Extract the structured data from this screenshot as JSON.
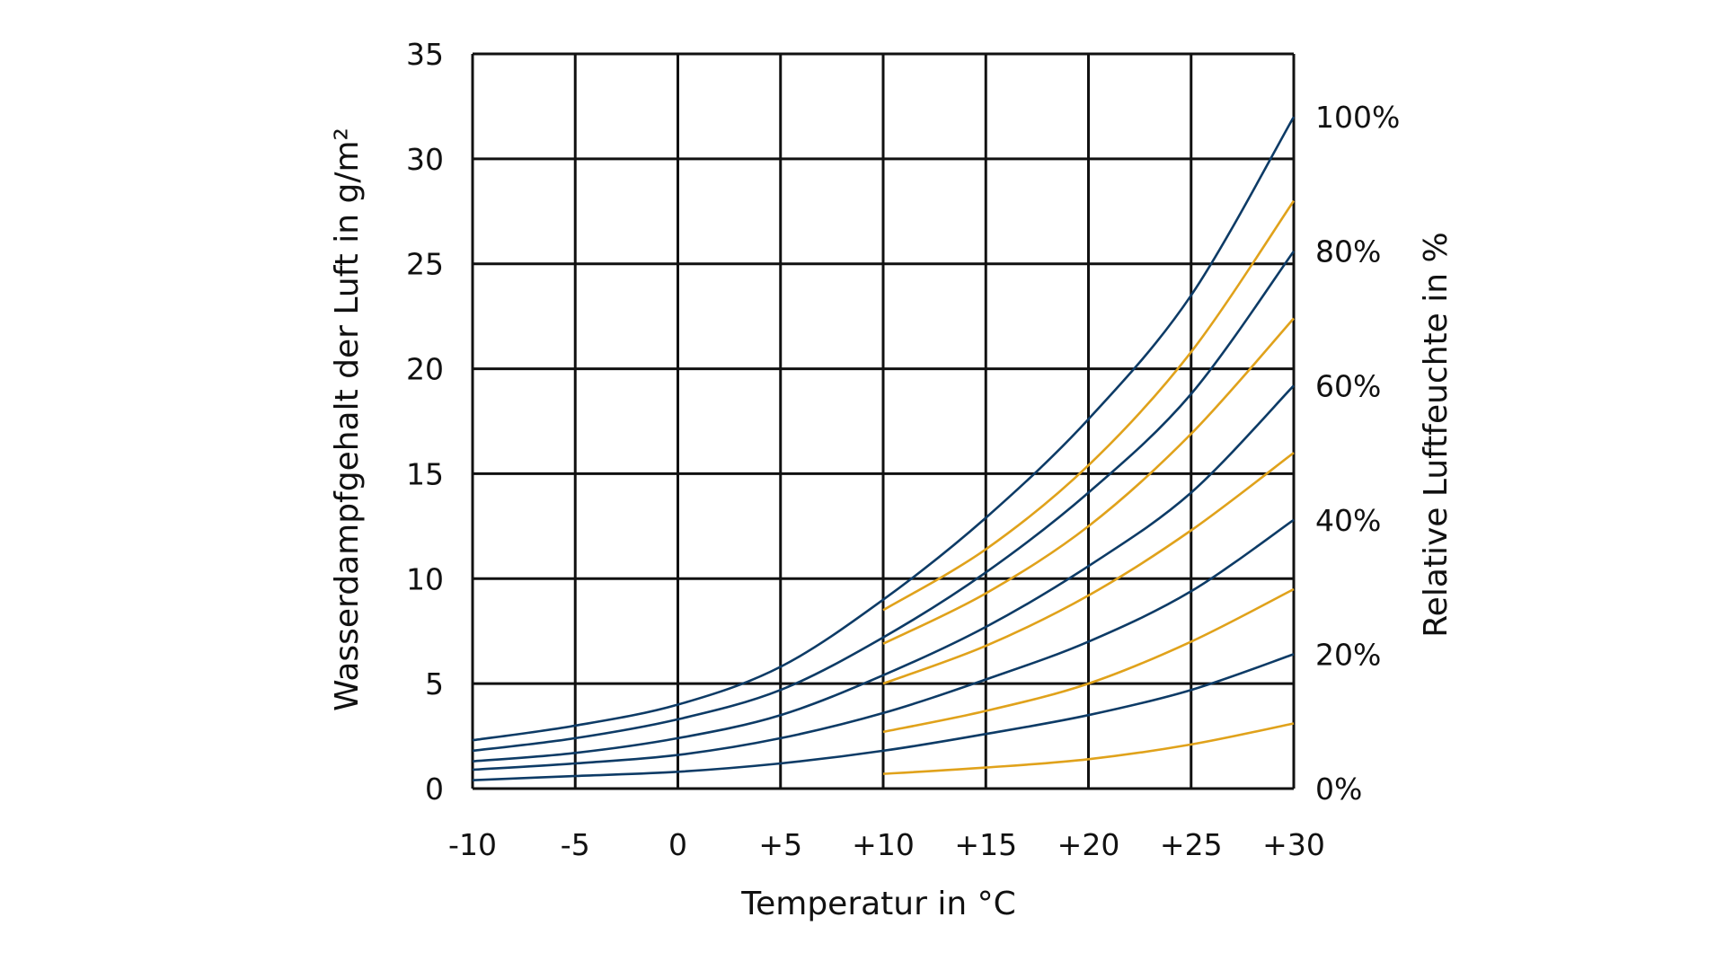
{
  "chart_data": {
    "type": "line",
    "xlabel": "Temperatur in °C",
    "ylabel": "Wasserdampfgehalt der Luft in g/m²",
    "y2label": "Relative Luftfeuchte in %",
    "xlim": [
      -10,
      30
    ],
    "ylim": [
      0,
      35
    ],
    "x_tick_values": [
      -10,
      -5,
      0,
      5,
      10,
      15,
      20,
      25,
      30
    ],
    "x_tick_labels": [
      "-10",
      "-5",
      "0",
      "+5",
      "+10",
      "+15",
      "+20",
      "+25",
      "+30"
    ],
    "y_tick_values": [
      0,
      5,
      10,
      15,
      20,
      25,
      30,
      35
    ],
    "y_tick_labels": [
      "0",
      "5",
      "10",
      "15",
      "20",
      "25",
      "30",
      "35"
    ],
    "y2_tick_values": [
      0,
      20,
      40,
      60,
      80,
      100
    ],
    "y2_tick_labels": [
      "0%",
      "20%",
      "40%",
      "60%",
      "80%",
      "100%"
    ],
    "grid": true,
    "legend": "none",
    "colors": {
      "blue": "#0d3b66",
      "orange": "#e0a21b",
      "grid": "#111111"
    },
    "series": [
      {
        "color": "blue",
        "x": [
          -10,
          -5,
          0,
          5,
          10,
          15,
          20,
          25,
          30
        ],
        "y": [
          2.3,
          3.0,
          4.0,
          5.8,
          9.0,
          12.9,
          17.6,
          23.5,
          32.0
        ]
      },
      {
        "color": "blue",
        "x": [
          -10,
          -5,
          0,
          5,
          10,
          15,
          20,
          25,
          30
        ],
        "y": [
          1.8,
          2.4,
          3.3,
          4.7,
          7.2,
          10.3,
          14.1,
          18.8,
          25.6
        ]
      },
      {
        "color": "blue",
        "x": [
          -10,
          -5,
          0,
          5,
          10,
          15,
          20,
          25,
          30
        ],
        "y": [
          1.3,
          1.7,
          2.4,
          3.5,
          5.4,
          7.7,
          10.6,
          14.1,
          19.2
        ]
      },
      {
        "color": "blue",
        "x": [
          -10,
          -5,
          0,
          5,
          10,
          15,
          20,
          25,
          30
        ],
        "y": [
          0.9,
          1.2,
          1.6,
          2.4,
          3.6,
          5.2,
          7.0,
          9.4,
          12.8
        ]
      },
      {
        "color": "blue",
        "x": [
          -10,
          -5,
          0,
          5,
          10,
          15,
          20,
          25,
          30
        ],
        "y": [
          0.4,
          0.6,
          0.8,
          1.2,
          1.8,
          2.6,
          3.5,
          4.7,
          6.4
        ]
      },
      {
        "color": "orange",
        "x": [
          10,
          15,
          20,
          25,
          30
        ],
        "y": [
          8.5,
          11.4,
          15.4,
          20.8,
          28.0
        ]
      },
      {
        "color": "orange",
        "x": [
          10,
          15,
          20,
          25,
          30
        ],
        "y": [
          6.9,
          9.3,
          12.5,
          16.9,
          22.4
        ]
      },
      {
        "color": "orange",
        "x": [
          10,
          15,
          20,
          25,
          30
        ],
        "y": [
          5.0,
          6.8,
          9.2,
          12.3,
          16.0
        ]
      },
      {
        "color": "orange",
        "x": [
          10,
          15,
          20,
          25,
          30
        ],
        "y": [
          2.7,
          3.7,
          5.0,
          7.0,
          9.5
        ]
      },
      {
        "color": "orange",
        "x": [
          10,
          15,
          20,
          25,
          30
        ],
        "y": [
          0.7,
          1.0,
          1.4,
          2.1,
          3.1
        ]
      }
    ]
  }
}
